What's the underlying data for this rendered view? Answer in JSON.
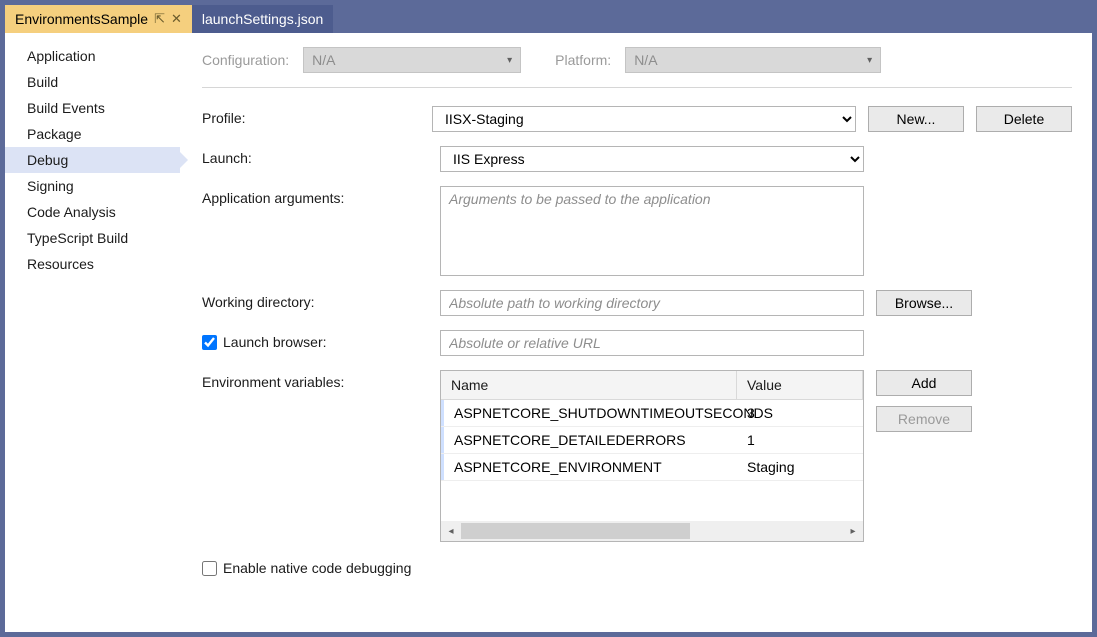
{
  "tabs": [
    {
      "label": "EnvironmentsSample",
      "active": true
    },
    {
      "label": "launchSettings.json",
      "active": false
    }
  ],
  "sidebar": {
    "items": [
      {
        "label": "Application"
      },
      {
        "label": "Build"
      },
      {
        "label": "Build Events"
      },
      {
        "label": "Package"
      },
      {
        "label": "Debug",
        "selected": true
      },
      {
        "label": "Signing"
      },
      {
        "label": "Code Analysis"
      },
      {
        "label": "TypeScript Build"
      },
      {
        "label": "Resources"
      }
    ]
  },
  "top": {
    "configuration_label": "Configuration:",
    "configuration_value": "N/A",
    "platform_label": "Platform:",
    "platform_value": "N/A"
  },
  "profile": {
    "label": "Profile:",
    "value": "IISX-Staging",
    "new_button": "New...",
    "delete_button": "Delete"
  },
  "launch": {
    "label": "Launch:",
    "value": "IIS Express"
  },
  "app_args": {
    "label": "Application arguments:",
    "placeholder": "Arguments to be passed to the application",
    "value": ""
  },
  "working_dir": {
    "label": "Working directory:",
    "placeholder": "Absolute path to working directory",
    "value": "",
    "browse_button": "Browse..."
  },
  "launch_browser": {
    "label": "Launch browser:",
    "checked": true,
    "placeholder": "Absolute or relative URL",
    "value": ""
  },
  "env_vars": {
    "label": "Environment variables:",
    "columns": {
      "name": "Name",
      "value": "Value"
    },
    "rows": [
      {
        "name": "ASPNETCORE_SHUTDOWNTIMEOUTSECONDS",
        "value": "3"
      },
      {
        "name": "ASPNETCORE_DETAILEDERRORS",
        "value": "1"
      },
      {
        "name": "ASPNETCORE_ENVIRONMENT",
        "value": "Staging"
      }
    ],
    "add_button": "Add",
    "remove_button": "Remove"
  },
  "native_debug": {
    "label": "Enable native code debugging",
    "checked": false
  }
}
